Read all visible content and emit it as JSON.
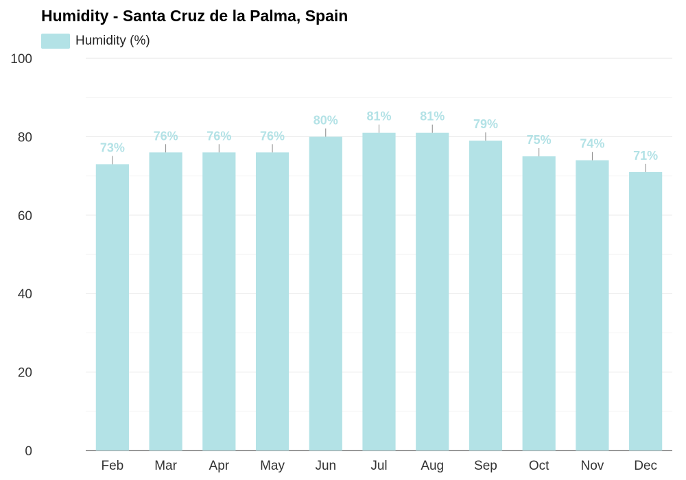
{
  "chart_data": {
    "type": "bar",
    "title": "Humidity - Santa Cruz de la Palma, Spain",
    "categories": [
      "Feb",
      "Mar",
      "Apr",
      "May",
      "Jun",
      "Jul",
      "Aug",
      "Sep",
      "Oct",
      "Nov",
      "Dec"
    ],
    "series": [
      {
        "name": "Humidity (%)",
        "values": [
          73,
          76,
          76,
          76,
          80,
          81,
          81,
          79,
          75,
          74,
          71
        ]
      }
    ],
    "data_labels": [
      "73%",
      "76%",
      "76%",
      "76%",
      "80%",
      "81%",
      "81%",
      "79%",
      "75%",
      "74%",
      "71%"
    ],
    "ylim": [
      0,
      100
    ],
    "yticks": [
      "0",
      "20",
      "40",
      "60",
      "80",
      "100"
    ],
    "xlabel": "",
    "ylabel": "",
    "grid": true,
    "legend_position": "top-left",
    "colors": {
      "bar": "#b3e2e6",
      "label": "#b3e2e6",
      "grid": "#e6e6e6",
      "axis": "#333333"
    }
  }
}
